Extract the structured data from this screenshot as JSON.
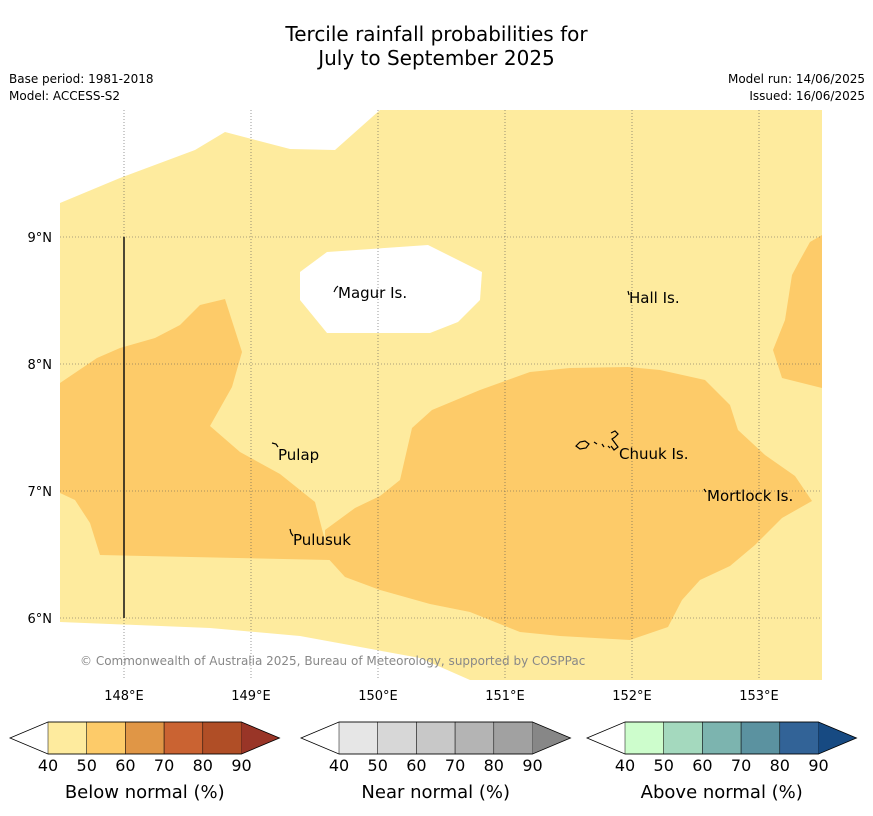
{
  "title": {
    "line1": "Tercile rainfall probabilities for",
    "line2": "July to September 2025"
  },
  "info": {
    "base_period": "Base period: 1981-2018",
    "model": "Model: ACCESS-S2",
    "model_run": "Model run: 14/06/2025",
    "issued": "Issued: 16/06/2025"
  },
  "map": {
    "lon_ticks": [
      "148°E",
      "149°E",
      "150°E",
      "151°E",
      "152°E",
      "153°E"
    ],
    "lat_ticks": [
      "9°N",
      "8°N",
      "7°N",
      "6°N"
    ],
    "places": [
      "Magur Is.",
      "Hall Is.",
      "Pulap",
      "Chuuk Is.",
      "Mortlock Is.",
      "Pulusuk"
    ],
    "copyright": "© Commonwealth of Australia 2025, Bureau of Meteorology, supported by COSPPac"
  },
  "legends": [
    {
      "label": "Below normal (%)",
      "ticks": [
        "40",
        "50",
        "60",
        "70",
        "80",
        "90"
      ],
      "colors": [
        "#ffffff",
        "#feeb9e",
        "#fdcb69",
        "#e09646",
        "#ca6332",
        "#b04e26",
        "#993527"
      ]
    },
    {
      "label": "Near normal (%)",
      "ticks": [
        "40",
        "50",
        "60",
        "70",
        "80",
        "90"
      ],
      "colors": [
        "#ffffff",
        "#e6e6e6",
        "#d7d7d7",
        "#c8c8c8",
        "#b4b4b4",
        "#a1a1a1",
        "#878787"
      ]
    },
    {
      "label": "Above normal (%)",
      "ticks": [
        "40",
        "50",
        "60",
        "70",
        "80",
        "90"
      ],
      "colors": [
        "#ffffff",
        "#cdfdcc",
        "#a4d9be",
        "#7cb4af",
        "#5b92a0",
        "#326397",
        "#174a82"
      ]
    }
  ],
  "colors": {
    "below_50_60": "#feeb9e",
    "below_60_70": "#fdcb69",
    "grid": "#555555",
    "copyright_text": "#888888"
  }
}
